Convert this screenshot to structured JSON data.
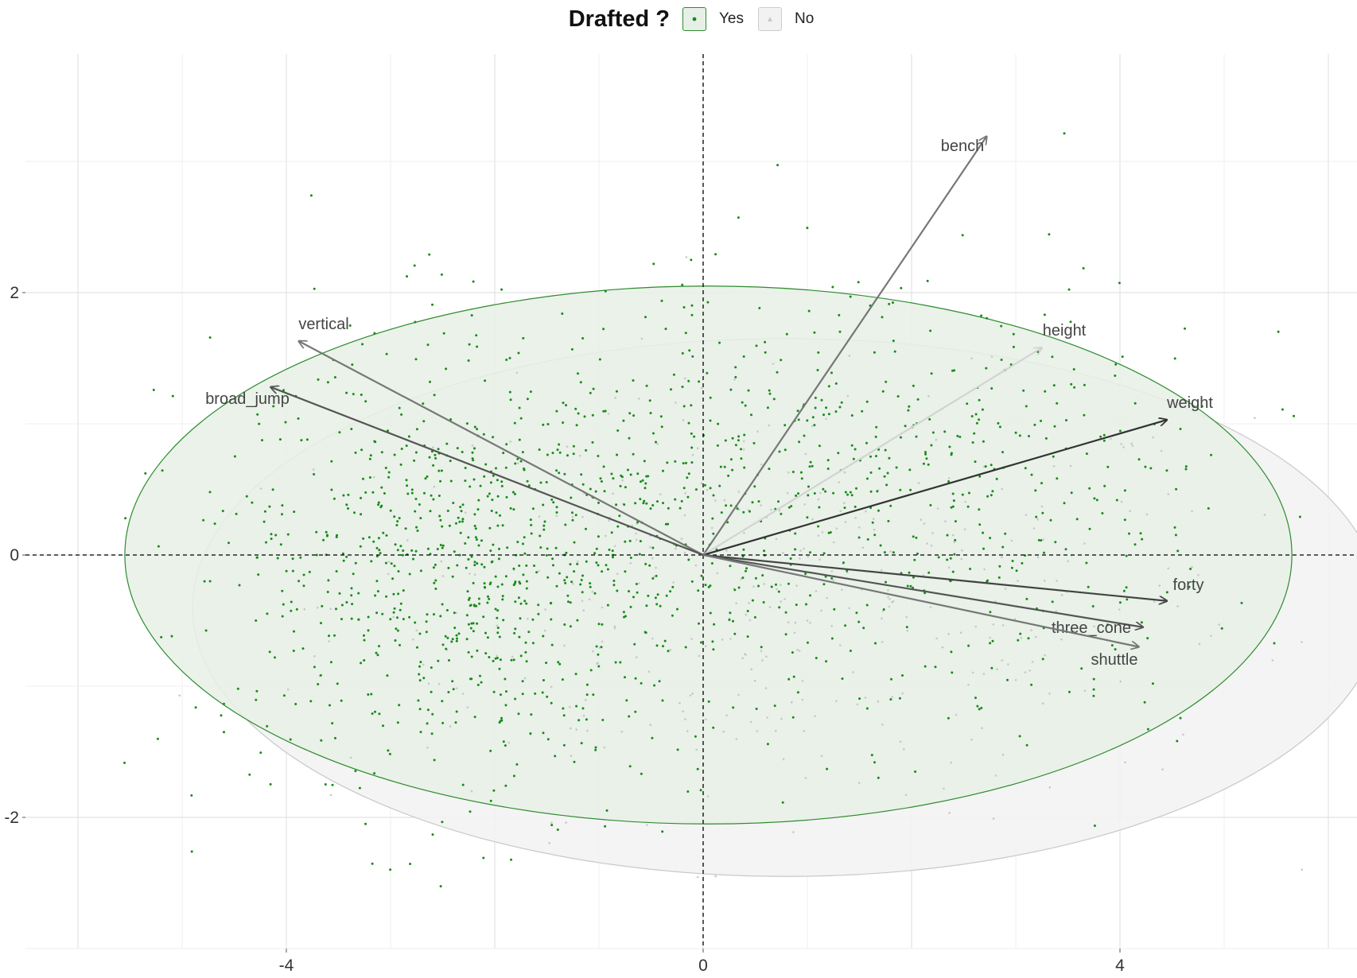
{
  "legend": {
    "title": "Drafted ?",
    "items": [
      {
        "label": "Yes",
        "fill": "#e6f0e6",
        "border": "#2e8b2e",
        "point": "#1a8a1a"
      },
      {
        "label": "No",
        "fill": "#f2f2f2",
        "border": "#cccccc",
        "point": "#c8c8c8"
      }
    ]
  },
  "chart_data": {
    "type": "scatter",
    "title": "",
    "xlabel": "",
    "ylabel": "",
    "xlim": [
      -6.8,
      6.2
    ],
    "ylim": [
      -3.0,
      3.8
    ],
    "x_ticks": [
      -4,
      0,
      4
    ],
    "x_tick_labels": [
      "-4",
      "0",
      "4"
    ],
    "y_ticks": [
      -2,
      0,
      2
    ],
    "y_tick_labels": [
      "-2",
      "0",
      "2"
    ],
    "grid": true,
    "reference_lines": {
      "x": 0,
      "y": 0,
      "style": "dashed"
    },
    "groups": [
      {
        "name": "Yes",
        "color": "#1a8a1a",
        "ellipse": {
          "cx": 0.05,
          "cy": 0.0,
          "rx": 5.6,
          "ry": 2.05,
          "fill": "#e6f0e6",
          "stroke": "#2e8b2e"
        }
      },
      {
        "name": "No",
        "color": "#c8c8c8",
        "ellipse": {
          "cx": 0.8,
          "cy": -0.4,
          "rx": 5.7,
          "ry": 2.05,
          "fill": "#f2f2f2",
          "stroke": "#c8c8c8"
        }
      }
    ],
    "loadings": [
      {
        "name": "bench",
        "x": 2.72,
        "y": 3.19,
        "color": "#777777"
      },
      {
        "name": "height",
        "x": 3.25,
        "y": 1.58,
        "color": "#d3d3d3"
      },
      {
        "name": "weight",
        "x": 4.45,
        "y": 1.03,
        "color": "#333333"
      },
      {
        "name": "forty",
        "x": 4.45,
        "y": -0.35,
        "color": "#444444"
      },
      {
        "name": "three_cone",
        "x": 4.22,
        "y": -0.55,
        "color": "#555555"
      },
      {
        "name": "shuttle",
        "x": 4.18,
        "y": -0.7,
        "color": "#777777"
      },
      {
        "name": "vertical",
        "x": -3.88,
        "y": 1.63,
        "color": "#777777"
      },
      {
        "name": "broad_jump",
        "x": -4.15,
        "y": 1.28,
        "color": "#555555"
      }
    ]
  }
}
